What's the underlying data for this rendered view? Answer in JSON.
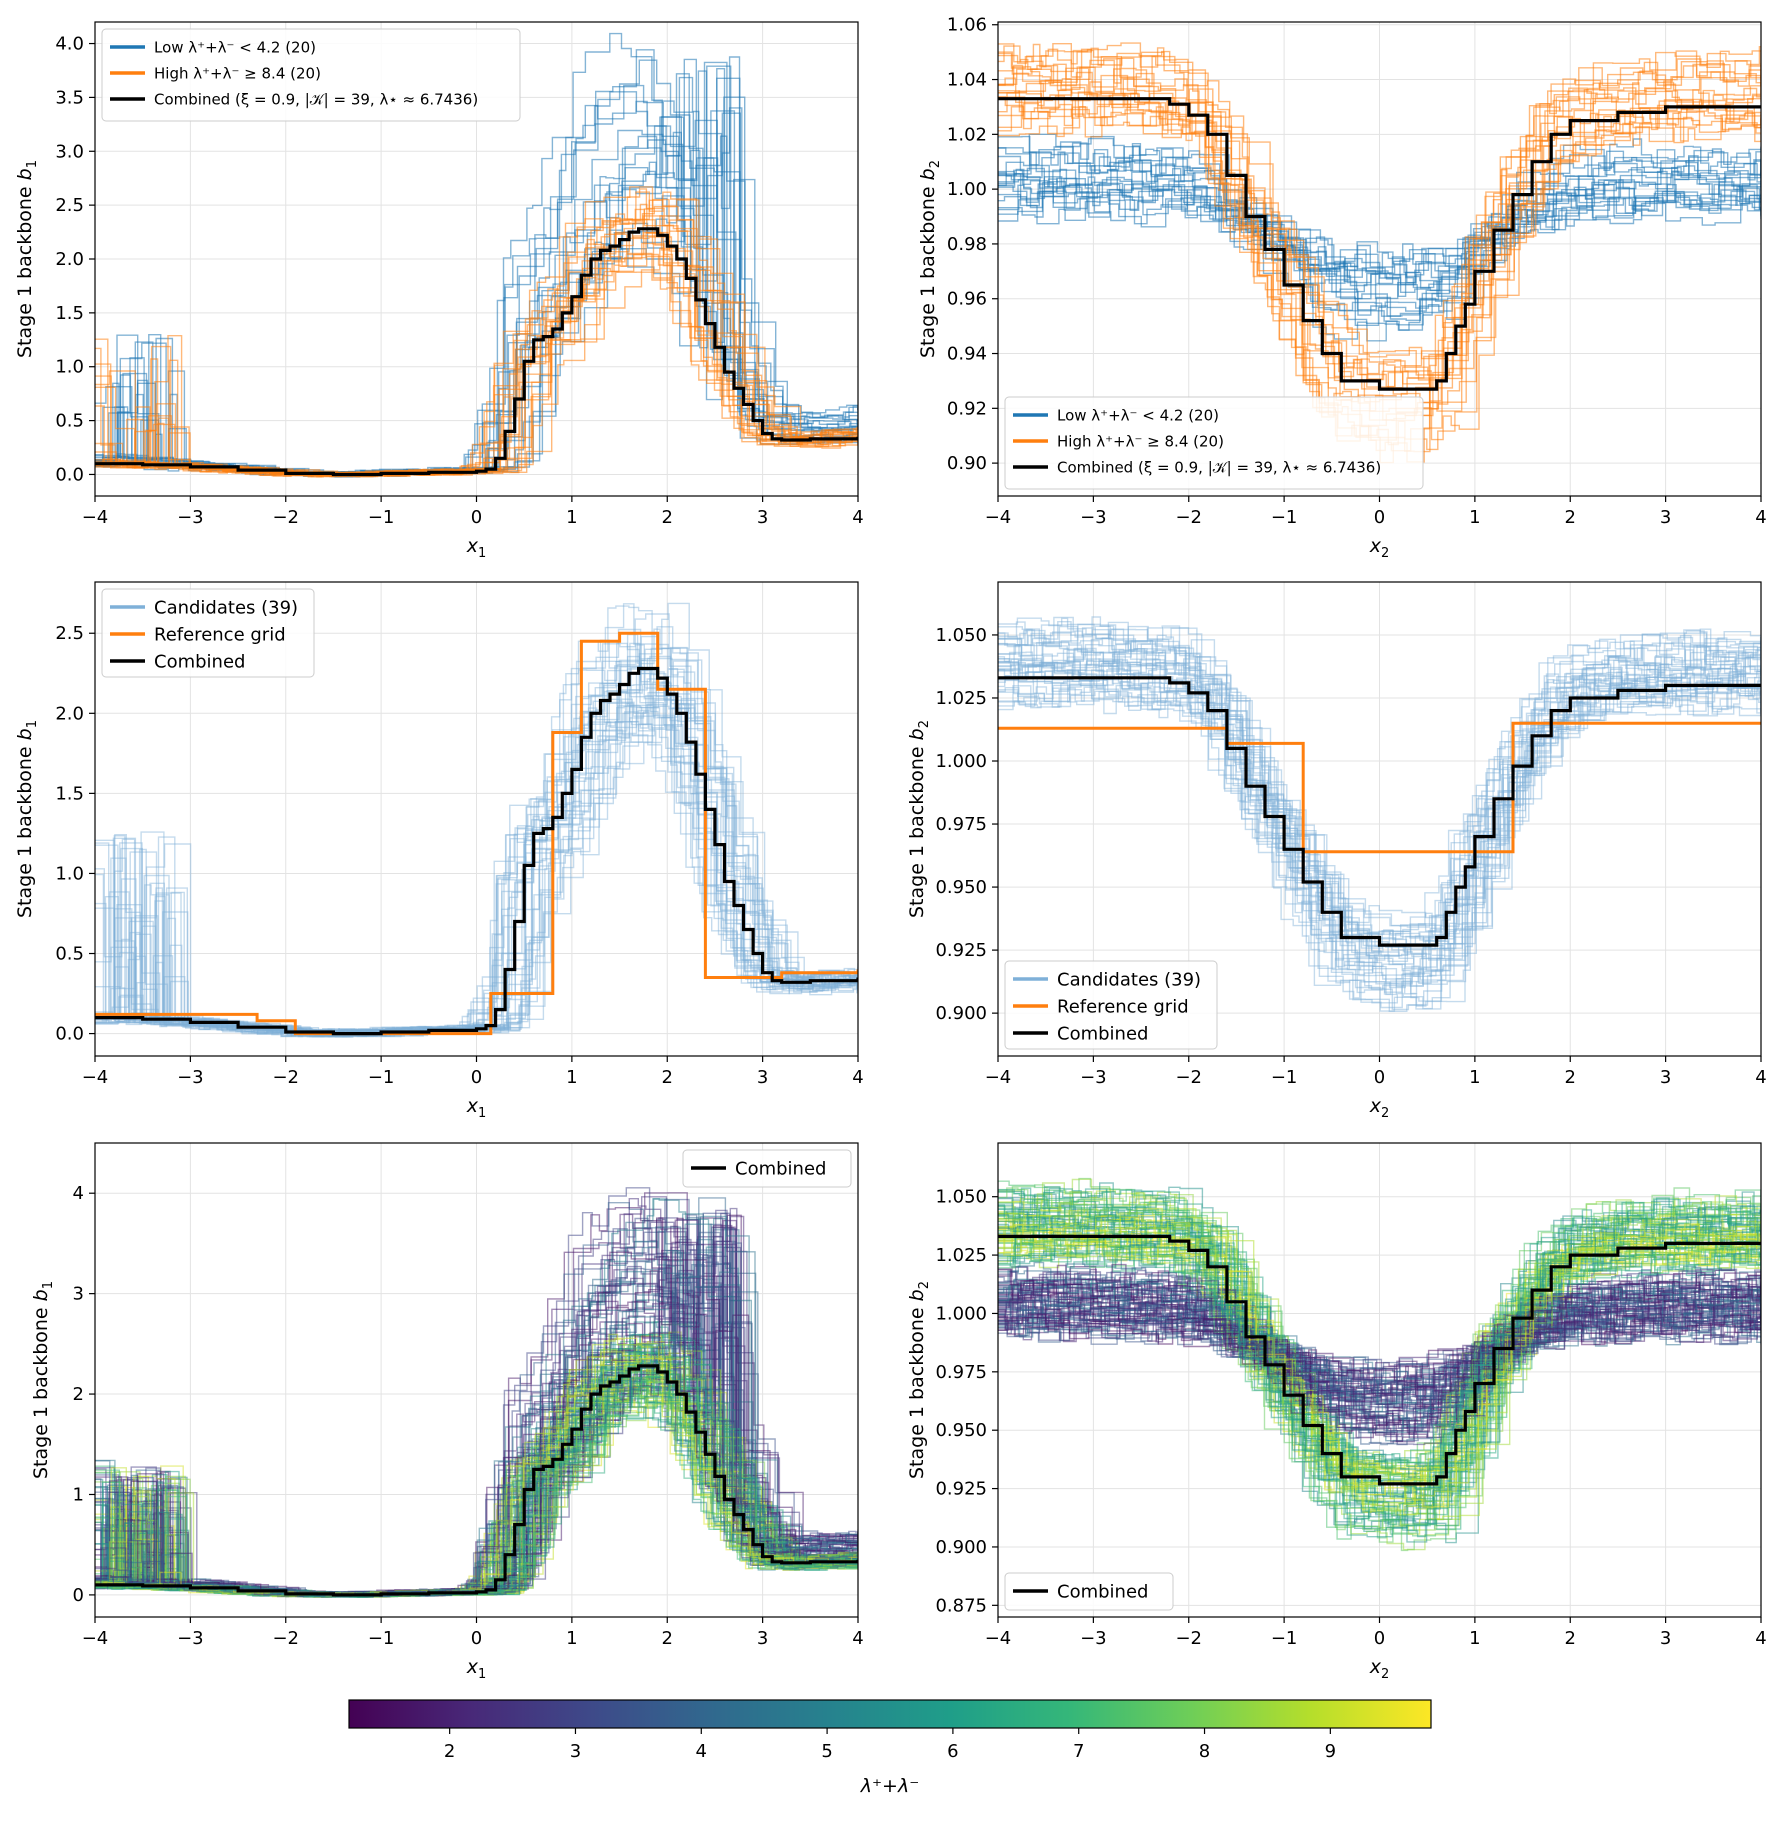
{
  "colors": {
    "low": "#1f77b4",
    "high": "#ff7f0e",
    "combined": "#000000",
    "candidates": "#7fb0d8",
    "reference": "#ff7f0e",
    "grid": "#e3e3e3"
  },
  "colormap": {
    "name": "viridis",
    "stops": [
      "#440154",
      "#482878",
      "#3e4989",
      "#31688e",
      "#26828e",
      "#1f9e89",
      "#35b779",
      "#6ece58",
      "#b5de2b",
      "#fde725"
    ],
    "range": [
      1.2,
      9.8
    ],
    "ticks": [
      2,
      3,
      4,
      5,
      6,
      7,
      8,
      9
    ],
    "label": "λ⁺+λ⁻"
  },
  "chart_data": [
    {
      "id": "p11",
      "type": "line",
      "step": true,
      "xlabel": "x",
      "xlabel_sub": "1",
      "ylabel": "Stage 1 backbone b",
      "ylabel_sub": "1",
      "xlim": [
        -4,
        4
      ],
      "ylim": [
        -0.2,
        4.2
      ],
      "xticks": [
        -4,
        -3,
        -2,
        -1,
        0,
        1,
        2,
        3,
        4
      ],
      "yticks": [
        0.0,
        0.5,
        1.0,
        1.5,
        2.0,
        2.5,
        3.0,
        3.5,
        4.0
      ],
      "ytick_labels": [
        "0.0",
        "0.5",
        "1.0",
        "1.5",
        "2.0",
        "2.5",
        "3.0",
        "3.5",
        "4.0"
      ],
      "legend": {
        "placement": "top-left",
        "entries": [
          {
            "label": "Low λ⁺+λ⁻ < 4.2 (20)",
            "color": "#1f77b4"
          },
          {
            "label": "High λ⁺+λ⁻ ≥ 8.4 (20)",
            "color": "#ff7f0e"
          },
          {
            "label": "Combined (ξ = 0.9, |𝒦| = 39, λ⋆ ≈ 6.7436)",
            "color": "#000000"
          }
        ]
      },
      "series": [
        {
          "name": "Combined",
          "color": "#000000",
          "x": [
            -4,
            -3.5,
            -3,
            -2.5,
            -2,
            -1.5,
            -1,
            -0.5,
            0,
            0.1,
            0.2,
            0.3,
            0.4,
            0.5,
            0.6,
            0.7,
            0.8,
            0.9,
            1.0,
            1.1,
            1.2,
            1.3,
            1.4,
            1.5,
            1.6,
            1.7,
            1.8,
            1.9,
            2.0,
            2.1,
            2.2,
            2.3,
            2.4,
            2.5,
            2.6,
            2.7,
            2.8,
            2.9,
            3.0,
            3.1,
            3.2,
            3.5,
            4.0
          ],
          "y": [
            0.1,
            0.09,
            0.07,
            0.04,
            0.01,
            0.0,
            0.01,
            0.02,
            0.03,
            0.05,
            0.15,
            0.4,
            0.7,
            1.05,
            1.25,
            1.28,
            1.35,
            1.5,
            1.65,
            1.85,
            2.0,
            2.08,
            2.12,
            2.18,
            2.25,
            2.28,
            2.28,
            2.22,
            2.12,
            2.0,
            1.82,
            1.62,
            1.4,
            1.18,
            0.95,
            0.8,
            0.65,
            0.5,
            0.38,
            0.33,
            0.32,
            0.33,
            0.35
          ]
        }
      ]
    },
    {
      "id": "p12",
      "type": "line",
      "step": true,
      "xlabel": "x",
      "xlabel_sub": "2",
      "ylabel": "Stage 1 backbone b",
      "ylabel_sub": "2",
      "xlim": [
        -4,
        4
      ],
      "ylim": [
        0.888,
        1.061
      ],
      "xticks": [
        -4,
        -3,
        -2,
        -1,
        0,
        1,
        2,
        3,
        4
      ],
      "yticks": [
        0.9,
        0.92,
        0.94,
        0.96,
        0.98,
        1.0,
        1.02,
        1.04,
        1.06
      ],
      "ytick_labels": [
        "0.90",
        "0.92",
        "0.94",
        "0.96",
        "0.98",
        "1.00",
        "1.02",
        "1.04",
        "1.06"
      ],
      "legend": {
        "placement": "bottom-left",
        "entries": [
          {
            "label": "Low λ⁺+λ⁻ < 4.2 (20)",
            "color": "#1f77b4"
          },
          {
            "label": "High λ⁺+λ⁻ ≥ 8.4 (20)",
            "color": "#ff7f0e"
          },
          {
            "label": "Combined (ξ = 0.9, |𝒦| = 39, λ⋆ ≈ 6.7436)",
            "color": "#000000"
          }
        ]
      },
      "series": [
        {
          "name": "Combined",
          "color": "#000000",
          "x": [
            -4,
            -3,
            -2.2,
            -2.0,
            -1.8,
            -1.6,
            -1.4,
            -1.2,
            -1.0,
            -0.8,
            -0.6,
            -0.4,
            0.0,
            0.4,
            0.6,
            0.7,
            0.8,
            0.9,
            1.0,
            1.2,
            1.4,
            1.6,
            1.8,
            2.0,
            2.5,
            3.0,
            4.0
          ],
          "y": [
            1.033,
            1.033,
            1.031,
            1.027,
            1.02,
            1.005,
            0.99,
            0.978,
            0.965,
            0.952,
            0.94,
            0.93,
            0.927,
            0.927,
            0.93,
            0.94,
            0.95,
            0.958,
            0.97,
            0.985,
            0.998,
            1.01,
            1.02,
            1.025,
            1.028,
            1.03,
            1.03
          ]
        }
      ]
    },
    {
      "id": "p21",
      "type": "line",
      "step": true,
      "xlabel": "x",
      "xlabel_sub": "1",
      "ylabel": "Stage 1 backbone b",
      "ylabel_sub": "1",
      "xlim": [
        -4,
        4
      ],
      "ylim": [
        -0.14,
        2.82
      ],
      "xticks": [
        -4,
        -3,
        -2,
        -1,
        0,
        1,
        2,
        3,
        4
      ],
      "yticks": [
        0.0,
        0.5,
        1.0,
        1.5,
        2.0,
        2.5
      ],
      "ytick_labels": [
        "0.0",
        "0.5",
        "1.0",
        "1.5",
        "2.0",
        "2.5"
      ],
      "legend": {
        "placement": "top-left",
        "entries": [
          {
            "label": "Candidates (39)",
            "color": "#7fb0d8"
          },
          {
            "label": "Reference grid",
            "color": "#ff7f0e"
          },
          {
            "label": "Combined",
            "color": "#000000"
          }
        ]
      },
      "series": [
        {
          "name": "Reference grid",
          "color": "#ff7f0e",
          "x": [
            -4,
            -2.3,
            -1.9,
            0.15,
            0.8,
            1.1,
            1.5,
            1.9,
            2.4,
            3.2,
            4.0
          ],
          "y": [
            0.12,
            0.08,
            0.0,
            0.25,
            1.88,
            2.45,
            2.5,
            2.15,
            0.35,
            0.38,
            0.4
          ]
        },
        {
          "name": "Combined",
          "color": "#000000",
          "x": [
            -4,
            -3.5,
            -3,
            -2.5,
            -2,
            -1.5,
            -1,
            -0.5,
            0,
            0.1,
            0.2,
            0.3,
            0.4,
            0.5,
            0.6,
            0.7,
            0.8,
            0.9,
            1.0,
            1.1,
            1.2,
            1.3,
            1.4,
            1.5,
            1.6,
            1.7,
            1.8,
            1.9,
            2.0,
            2.1,
            2.2,
            2.3,
            2.4,
            2.5,
            2.6,
            2.7,
            2.8,
            2.9,
            3.0,
            3.1,
            3.2,
            3.5,
            4.0
          ],
          "y": [
            0.1,
            0.09,
            0.07,
            0.04,
            0.01,
            0.0,
            0.01,
            0.02,
            0.03,
            0.05,
            0.15,
            0.4,
            0.7,
            1.05,
            1.25,
            1.28,
            1.35,
            1.5,
            1.65,
            1.85,
            2.0,
            2.08,
            2.12,
            2.18,
            2.25,
            2.28,
            2.28,
            2.22,
            2.12,
            2.0,
            1.82,
            1.62,
            1.4,
            1.18,
            0.95,
            0.8,
            0.65,
            0.5,
            0.38,
            0.33,
            0.32,
            0.33,
            0.35
          ]
        }
      ]
    },
    {
      "id": "p22",
      "type": "line",
      "step": true,
      "xlabel": "x",
      "xlabel_sub": "2",
      "ylabel": "Stage 1 backbone b",
      "ylabel_sub": "2",
      "xlim": [
        -4,
        4
      ],
      "ylim": [
        0.883,
        1.071
      ],
      "xticks": [
        -4,
        -3,
        -2,
        -1,
        0,
        1,
        2,
        3,
        4
      ],
      "yticks": [
        0.9,
        0.925,
        0.95,
        0.975,
        1.0,
        1.025,
        1.05
      ],
      "ytick_labels": [
        "0.900",
        "0.925",
        "0.950",
        "0.975",
        "1.000",
        "1.025",
        "1.050"
      ],
      "legend": {
        "placement": "bottom-left",
        "entries": [
          {
            "label": "Candidates (39)",
            "color": "#7fb0d8"
          },
          {
            "label": "Reference grid",
            "color": "#ff7f0e"
          },
          {
            "label": "Combined",
            "color": "#000000"
          }
        ]
      },
      "series": [
        {
          "name": "Reference grid",
          "color": "#ff7f0e",
          "x": [
            -4,
            -1.6,
            -0.8,
            1.4,
            4.0
          ],
          "y": [
            1.013,
            1.007,
            0.964,
            1.015,
            1.015
          ]
        },
        {
          "name": "Combined",
          "color": "#000000",
          "x": [
            -4,
            -3,
            -2.2,
            -2.0,
            -1.8,
            -1.6,
            -1.4,
            -1.2,
            -1.0,
            -0.8,
            -0.6,
            -0.4,
            0.0,
            0.4,
            0.6,
            0.7,
            0.8,
            0.9,
            1.0,
            1.2,
            1.4,
            1.6,
            1.8,
            2.0,
            2.5,
            3.0,
            4.0
          ],
          "y": [
            1.033,
            1.033,
            1.031,
            1.027,
            1.02,
            1.005,
            0.99,
            0.978,
            0.965,
            0.952,
            0.94,
            0.93,
            0.927,
            0.927,
            0.93,
            0.94,
            0.95,
            0.958,
            0.97,
            0.985,
            0.998,
            1.01,
            1.02,
            1.025,
            1.028,
            1.03,
            1.03
          ]
        }
      ]
    },
    {
      "id": "p31",
      "type": "line",
      "step": true,
      "xlabel": "x",
      "xlabel_sub": "1",
      "ylabel": "Stage 1 backbone b",
      "ylabel_sub": "1",
      "xlim": [
        -4,
        4
      ],
      "ylim": [
        -0.22,
        4.5
      ],
      "xticks": [
        -4,
        -3,
        -2,
        -1,
        0,
        1,
        2,
        3,
        4
      ],
      "yticks": [
        0,
        1,
        2,
        3,
        4
      ],
      "ytick_labels": [
        "0",
        "1",
        "2",
        "3",
        "4"
      ],
      "legend": {
        "placement": "top-right",
        "entries": [
          {
            "label": "Combined",
            "color": "#000000"
          }
        ]
      },
      "series": [
        {
          "name": "Combined",
          "color": "#000000",
          "x": [
            -4,
            -3.5,
            -3,
            -2.5,
            -2,
            -1.5,
            -1,
            -0.5,
            0,
            0.1,
            0.2,
            0.3,
            0.4,
            0.5,
            0.6,
            0.7,
            0.8,
            0.9,
            1.0,
            1.1,
            1.2,
            1.3,
            1.4,
            1.5,
            1.6,
            1.7,
            1.8,
            1.9,
            2.0,
            2.1,
            2.2,
            2.3,
            2.4,
            2.5,
            2.6,
            2.7,
            2.8,
            2.9,
            3.0,
            3.1,
            3.2,
            3.5,
            4.0
          ],
          "y": [
            0.1,
            0.09,
            0.07,
            0.04,
            0.01,
            0.0,
            0.01,
            0.02,
            0.03,
            0.05,
            0.15,
            0.4,
            0.7,
            1.05,
            1.25,
            1.28,
            1.35,
            1.5,
            1.65,
            1.85,
            2.0,
            2.08,
            2.12,
            2.18,
            2.25,
            2.28,
            2.28,
            2.22,
            2.12,
            2.0,
            1.82,
            1.62,
            1.4,
            1.18,
            0.95,
            0.8,
            0.65,
            0.5,
            0.38,
            0.33,
            0.32,
            0.33,
            0.35
          ]
        }
      ]
    },
    {
      "id": "p32",
      "type": "line",
      "step": true,
      "xlabel": "x",
      "xlabel_sub": "2",
      "ylabel": "Stage 1 backbone b",
      "ylabel_sub": "2",
      "xlim": [
        -4,
        4
      ],
      "ylim": [
        0.87,
        1.073
      ],
      "xticks": [
        -4,
        -3,
        -2,
        -1,
        0,
        1,
        2,
        3,
        4
      ],
      "yticks": [
        0.875,
        0.9,
        0.925,
        0.95,
        0.975,
        1.0,
        1.025,
        1.05
      ],
      "ytick_labels": [
        "0.875",
        "0.900",
        "0.925",
        "0.950",
        "0.975",
        "1.000",
        "1.025",
        "1.050"
      ],
      "legend": {
        "placement": "bottom-left",
        "entries": [
          {
            "label": "Combined",
            "color": "#000000"
          }
        ]
      },
      "series": [
        {
          "name": "Combined",
          "color": "#000000",
          "x": [
            -4,
            -3,
            -2.2,
            -2.0,
            -1.8,
            -1.6,
            -1.4,
            -1.2,
            -1.0,
            -0.8,
            -0.6,
            -0.4,
            0.0,
            0.4,
            0.6,
            0.7,
            0.8,
            0.9,
            1.0,
            1.2,
            1.4,
            1.6,
            1.8,
            2.0,
            2.5,
            3.0,
            4.0
          ],
          "y": [
            1.033,
            1.033,
            1.031,
            1.027,
            1.02,
            1.005,
            0.99,
            0.978,
            0.965,
            0.952,
            0.94,
            0.93,
            0.927,
            0.927,
            0.93,
            0.94,
            0.95,
            0.958,
            0.97,
            0.985,
            0.998,
            1.01,
            1.02,
            1.025,
            1.028,
            1.03,
            1.03
          ]
        }
      ]
    }
  ]
}
